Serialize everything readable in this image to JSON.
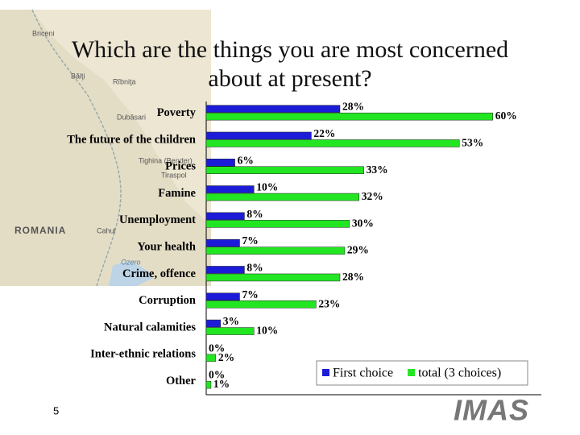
{
  "chart_data": {
    "type": "hbar",
    "title": "Which are the things you are most concerned about at present?",
    "categories": [
      "Poverty",
      "The future of the children",
      "Prices",
      "Famine",
      "Unemployment",
      "Your health",
      "Crime, offence",
      "Corruption",
      "Natural calamities",
      "Inter-ethnic relations",
      "Other"
    ],
    "series": [
      {
        "name": "First choice",
        "color": "#1c1cd8",
        "values": [
          28,
          22,
          6,
          10,
          8,
          7,
          8,
          7,
          3,
          0,
          0
        ],
        "value_labels": [
          "28%",
          "22%",
          "6%",
          "10%",
          "8%",
          "7%",
          "8%",
          "7%",
          "3%",
          "0%",
          "0%"
        ]
      },
      {
        "name": "total (3 choices)",
        "color": "#22e622",
        "values": [
          60,
          53,
          33,
          32,
          30,
          29,
          28,
          23,
          10,
          2,
          1
        ],
        "value_labels": [
          "60%",
          "53%",
          "33%",
          "32%",
          "30%",
          "29%",
          "28%",
          "23%",
          "10%",
          "2%",
          "1%"
        ]
      }
    ],
    "xlim": [
      0,
      70
    ],
    "legend": "bottom-right"
  },
  "background_map": {
    "labels": [
      "Briceni",
      "Bălţi",
      "Rîbniţa",
      "Dubăsari",
      "Tighina (Bender)",
      "Tiraspol",
      "ROMANIA",
      "Cahul",
      "Ozero"
    ]
  },
  "footer": {
    "page_number": "5",
    "logo": "IMAS"
  }
}
